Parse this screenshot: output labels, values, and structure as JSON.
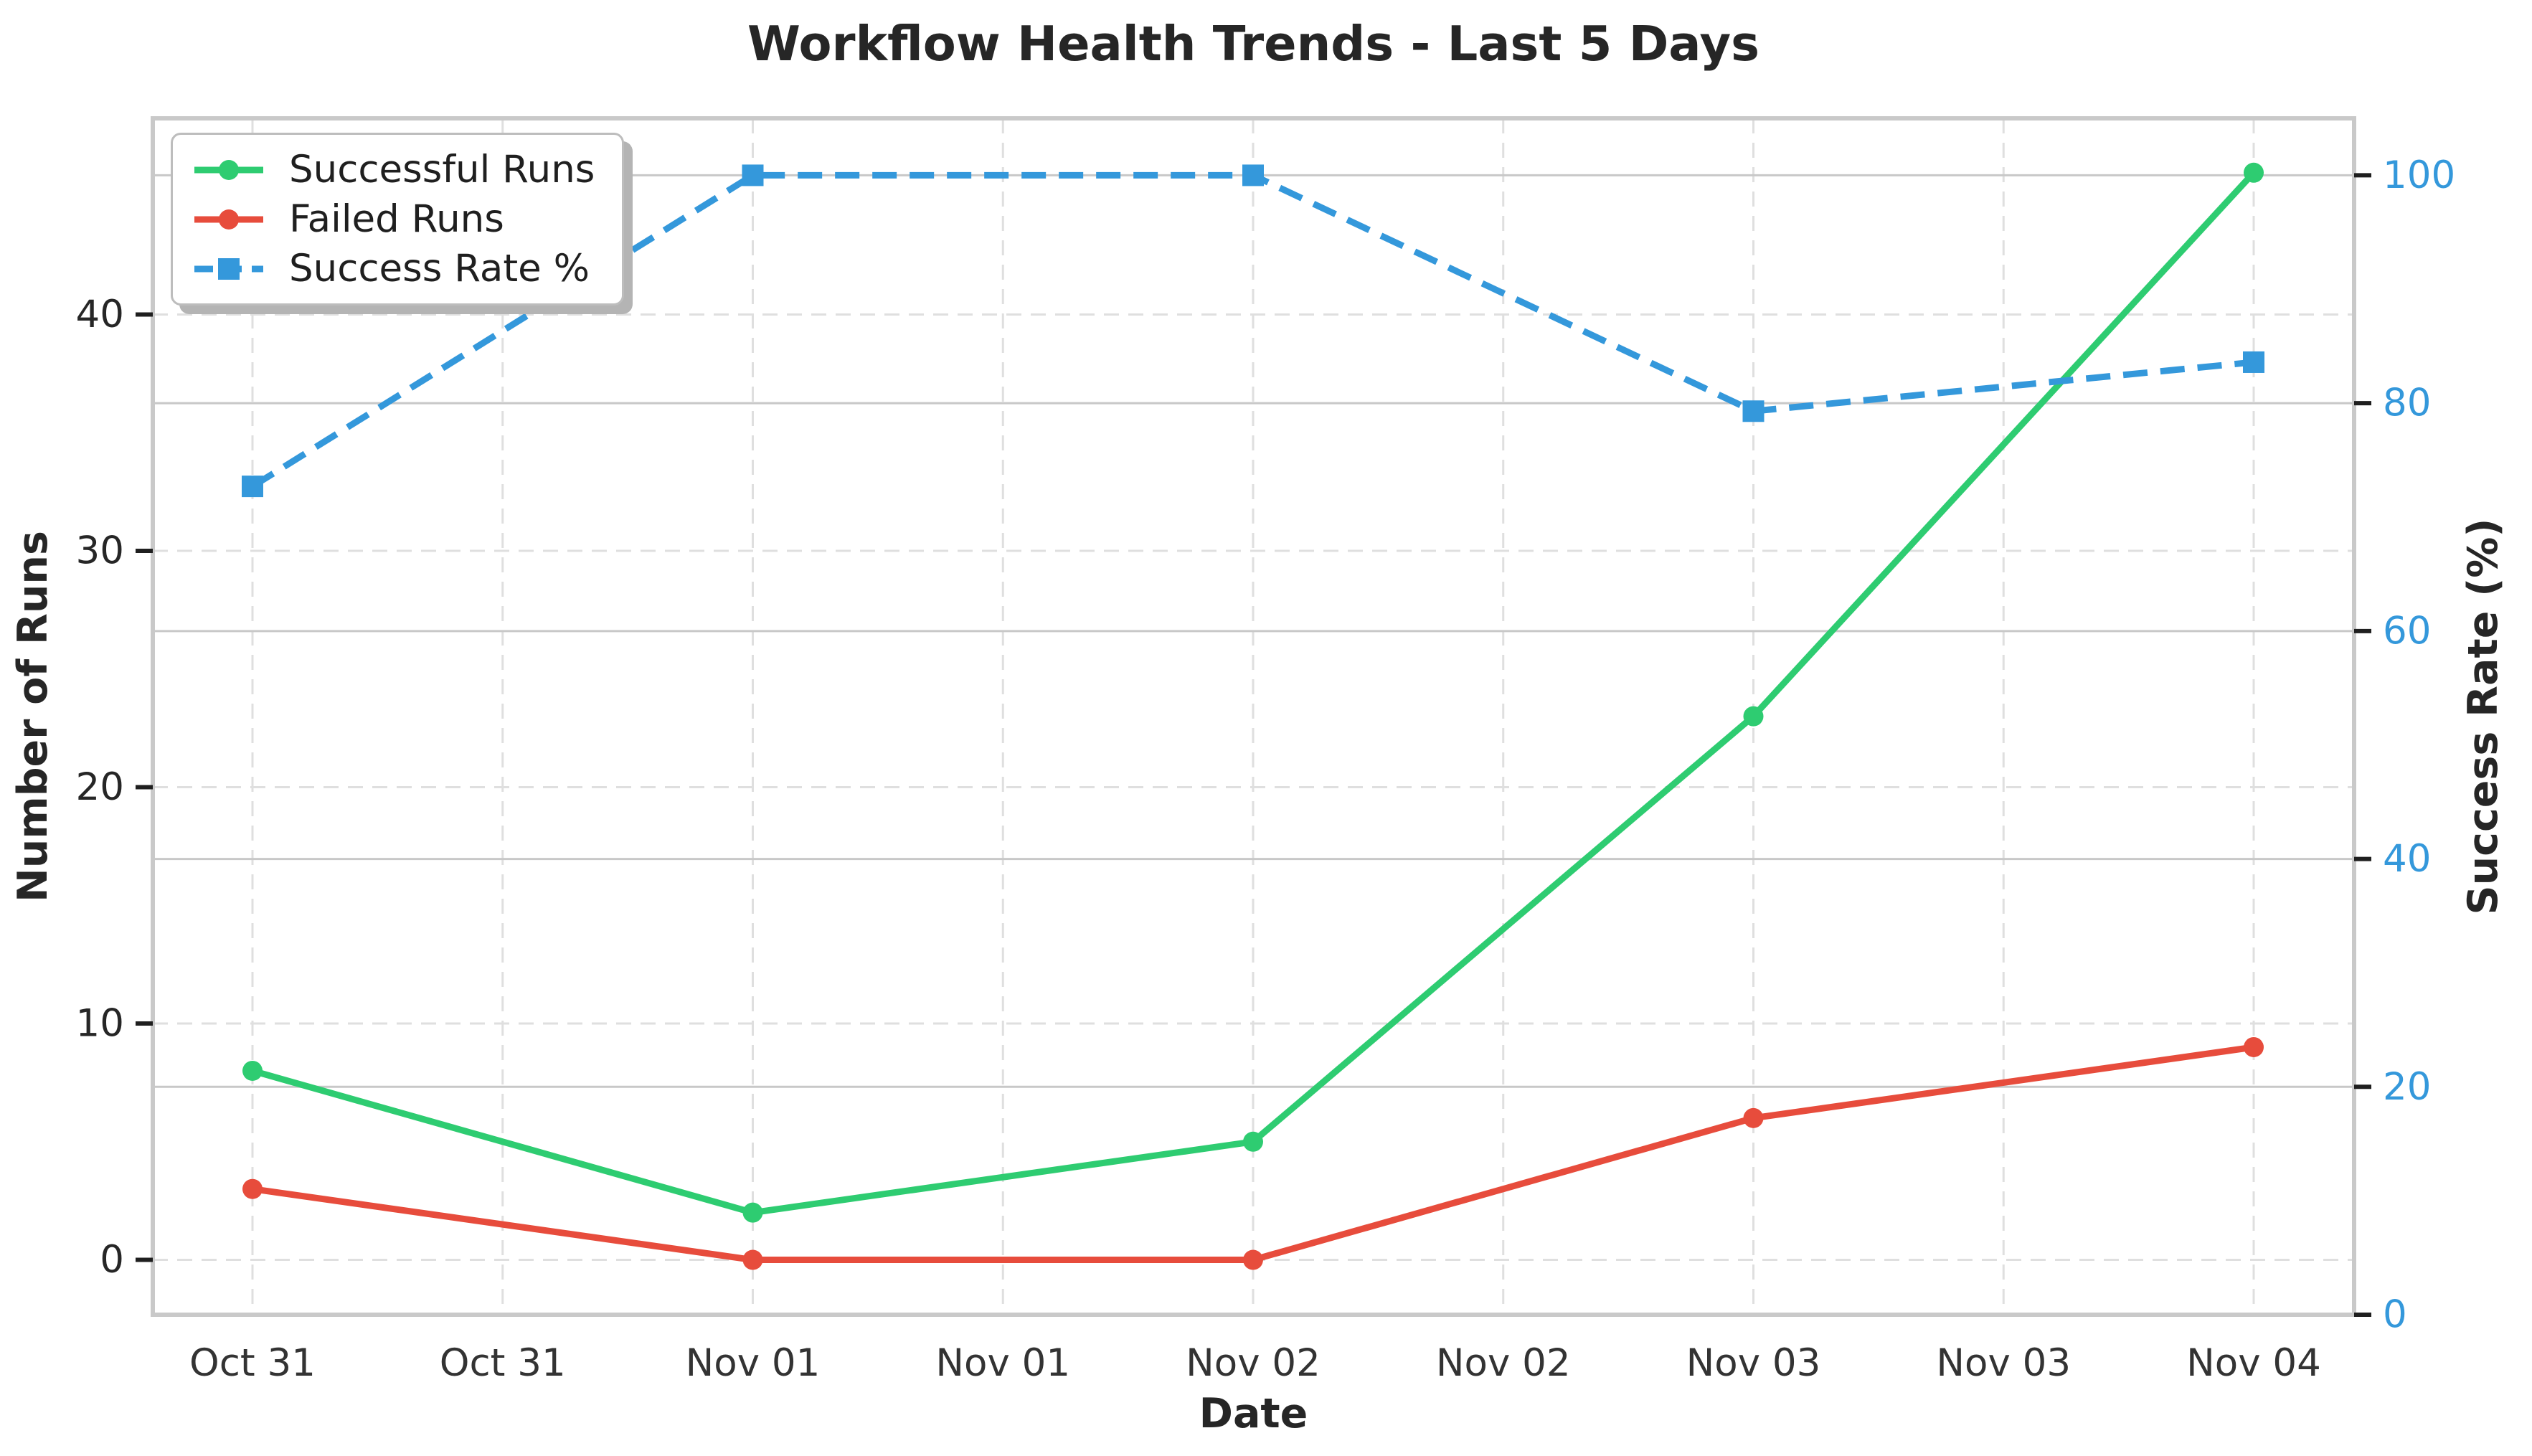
{
  "title": "Workflow Health Trends - Last 5 Days",
  "chart_data": {
    "type": "line",
    "title": "Workflow Health Trends - Last 5 Days",
    "xlabel": "Date",
    "x_tick_labels": [
      "Oct 31",
      "Oct 31",
      "Nov 01",
      "Nov 01",
      "Nov 02",
      "Nov 02",
      "Nov 03",
      "Nov 03",
      "Nov 04"
    ],
    "series_x_tick_indices": [
      0,
      2,
      4,
      6,
      8
    ],
    "left_axis": {
      "label": "Number of Runs",
      "ticks": [
        0,
        10,
        20,
        30,
        40
      ],
      "range": [
        -2.32,
        48.3
      ],
      "grid_style": "dashed",
      "tick_color": "#262626"
    },
    "right_axis": {
      "label": "Success Rate (%)",
      "ticks": [
        0,
        20,
        40,
        60,
        80,
        100
      ],
      "range": [
        0,
        105
      ],
      "grid_style": "solid",
      "tick_color": "#3498db"
    },
    "series": [
      {
        "name": "Successful Runs",
        "axis": "left",
        "color": "#2ecc71",
        "line_style": "solid",
        "marker": "circle",
        "values": [
          8,
          2,
          5,
          23,
          46
        ]
      },
      {
        "name": "Failed Runs",
        "axis": "left",
        "color": "#e74c3c",
        "line_style": "solid",
        "marker": "circle",
        "values": [
          3,
          0,
          0,
          6,
          9
        ]
      },
      {
        "name": "Success Rate %",
        "axis": "right",
        "color": "#3498db",
        "line_style": "dashed",
        "marker": "square",
        "values": [
          72.7,
          100,
          100,
          79.3,
          83.6
        ]
      }
    ],
    "legend": {
      "position": "upper-left",
      "entries": [
        "Successful Runs",
        "Failed Runs",
        "Success Rate %"
      ]
    },
    "grid": true
  }
}
